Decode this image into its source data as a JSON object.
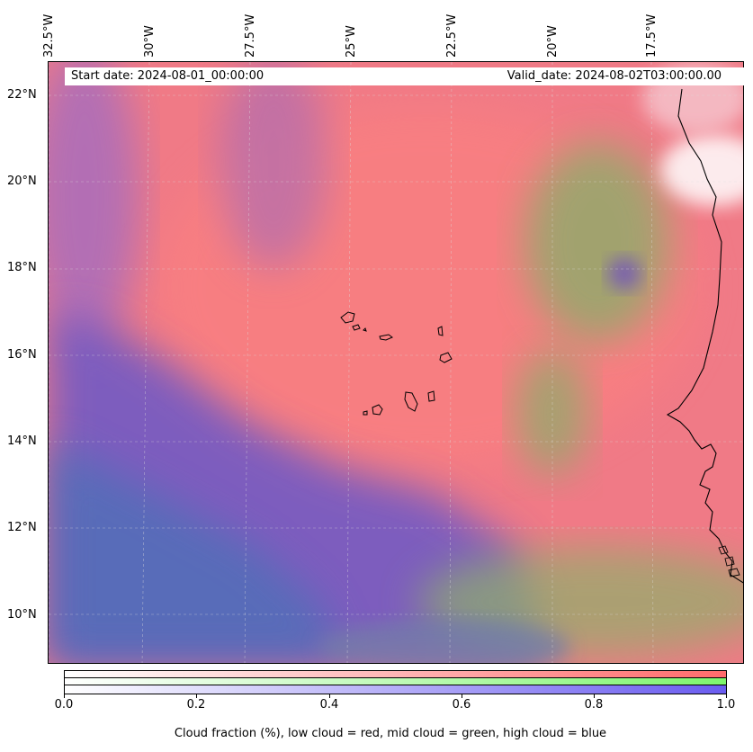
{
  "header": {
    "start_date": "Start date: 2024-08-01_00:00:00",
    "valid_date": "Valid_date: 2024-08-02T03:00:00.00"
  },
  "axes": {
    "lon_labels": [
      "32.5°W",
      "30°W",
      "27.5°W",
      "25°W",
      "22.5°W",
      "20°W",
      "17.5°W"
    ],
    "lat_labels": [
      "22°N",
      "20°N",
      "18°N",
      "16°N",
      "14°N",
      "12°N",
      "10°N"
    ]
  },
  "colorbar": {
    "ticks": [
      "0.0",
      "0.2",
      "0.4",
      "0.6",
      "0.8",
      "1.0"
    ],
    "label": "Cloud fraction (%), low cloud = red, mid cloud = green, high cloud = blue",
    "colors": {
      "low": "#ff6b6b",
      "mid": "#7ef56e",
      "high": "#6a5cf0"
    }
  },
  "map": {
    "background_color": "#f07a86",
    "coastline_color": "#000000"
  }
}
